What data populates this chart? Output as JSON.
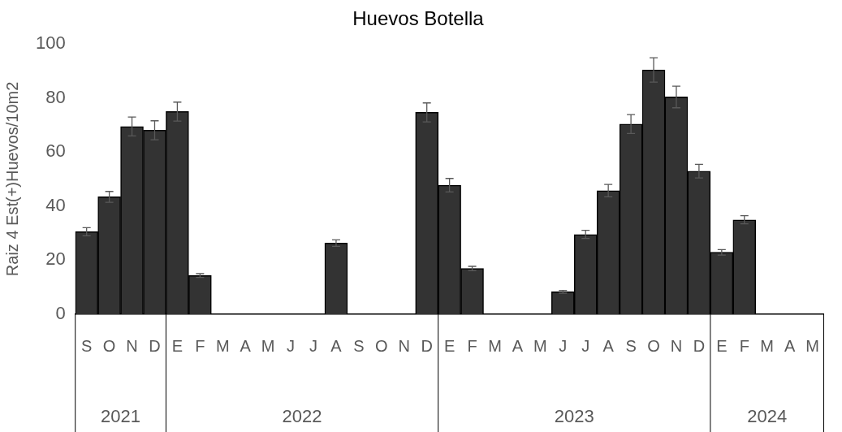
{
  "chart_data": {
    "type": "bar",
    "title": "Huevos Botella",
    "ylabel": "Raiz 4 Est(+)Huevos/10m2",
    "categories": [
      "S",
      "O",
      "N",
      "D",
      "E",
      "F",
      "M",
      "A",
      "M",
      "J",
      "J",
      "A",
      "S",
      "O",
      "N",
      "D",
      "E",
      "F",
      "M",
      "A",
      "M",
      "J",
      "J",
      "A",
      "S",
      "O",
      "N",
      "D",
      "E",
      "F",
      "M",
      "A",
      "M"
    ],
    "values": [
      30.5,
      43.4,
      69.4,
      68,
      74.9,
      14.3,
      0,
      0,
      0,
      0,
      0,
      26.3,
      0,
      0,
      0,
      74.6,
      47.7,
      16.9,
      0,
      0,
      0,
      8.3,
      29.5,
      45.7,
      70.3,
      90.3,
      80.3,
      52.9,
      22.9,
      34.9,
      0,
      0,
      0
    ],
    "errors": [
      1.5,
      2,
      3.5,
      3.5,
      3.5,
      0.7,
      null,
      null,
      null,
      null,
      null,
      1.2,
      null,
      null,
      null,
      3.5,
      2.5,
      0.8,
      null,
      null,
      null,
      0.5,
      1.5,
      2.3,
      3.5,
      4.5,
      4,
      2.5,
      1,
      1.5,
      null,
      null,
      null
    ],
    "color": "#333333",
    "annotations": [
      "2021",
      "2022",
      "2023",
      "2024"
    ],
    "ylim": [
      0,
      100
    ],
    "yticks": [
      0,
      20,
      40,
      60,
      80,
      100
    ],
    "grid": false,
    "legend": false
  }
}
